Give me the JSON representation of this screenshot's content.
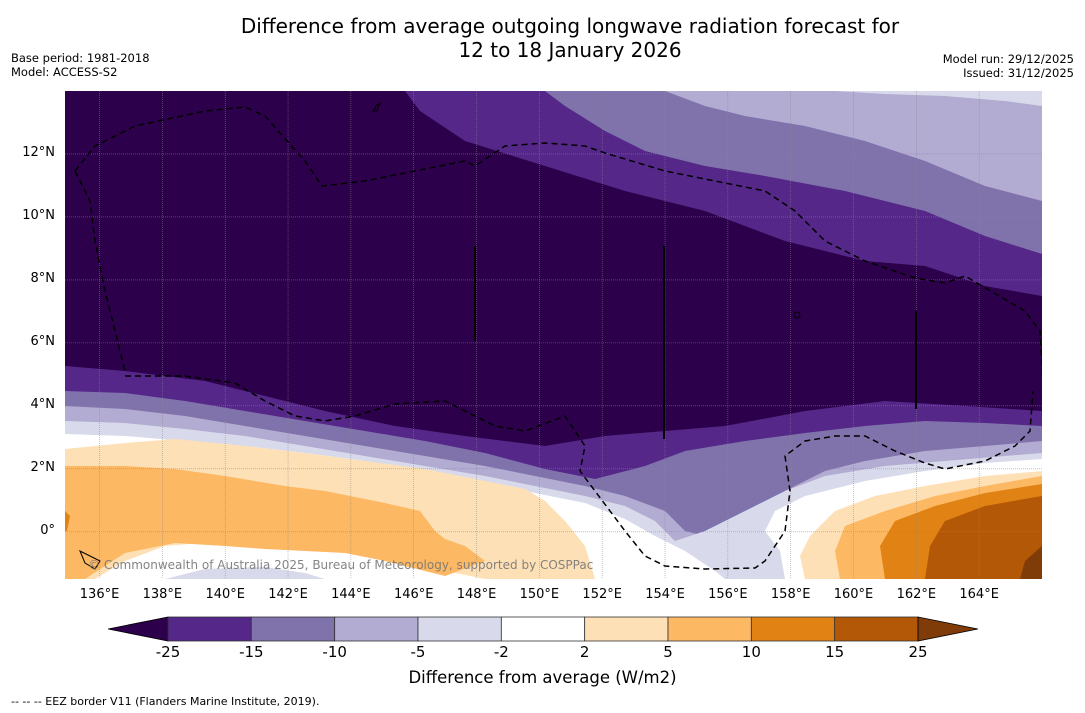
{
  "header": {
    "title_line1": "Difference from average outgoing longwave radiation forecast for",
    "title_line2": "12 to 18 January 2026",
    "base_period": "Base period: 1981-2018",
    "model": "Model: ACCESS-S2",
    "model_run": "Model run: 29/12/2025",
    "issued": "Issued: 31/12/2025"
  },
  "map": {
    "lat_labels": [
      "12°N",
      "10°N",
      "8°N",
      "6°N",
      "4°N",
      "2°N",
      "0°"
    ],
    "lon_labels": [
      "136°E",
      "138°E",
      "140°E",
      "142°E",
      "144°E",
      "146°E",
      "148°E",
      "150°E",
      "152°E",
      "154°E",
      "156°E",
      "158°E",
      "160°E",
      "162°E",
      "164°E"
    ],
    "copyright": "© Commonwealth of Australia 2025, Bureau of Meteorology, supported by COSPPac",
    "extent": {
      "lon_min": 134.9,
      "lon_max": 166.0,
      "lat_min": -1.5,
      "lat_max": 14.0
    }
  },
  "colorbar": {
    "label": "Difference from average (W/m2)",
    "ticks": [
      "-25",
      "-15",
      "-10",
      "-5",
      "-2",
      "2",
      "5",
      "10",
      "15",
      "25"
    ],
    "colors": {
      "below_-25": "#2d004b",
      "-25_-15": "#542788",
      "-15_-10": "#8073ac",
      "-10_-5": "#b2abd2",
      "-5_-2": "#d8daeb",
      "-2_2": "#ffffff",
      "2_5": "#fee0b6",
      "5_10": "#fdb863",
      "10_15": "#e08214",
      "15_25": "#b35806",
      "above_25": "#7f3b08"
    }
  },
  "footnote": "--  --  -- EEZ border V11 (Flanders Marine Institute, 2019)."
}
